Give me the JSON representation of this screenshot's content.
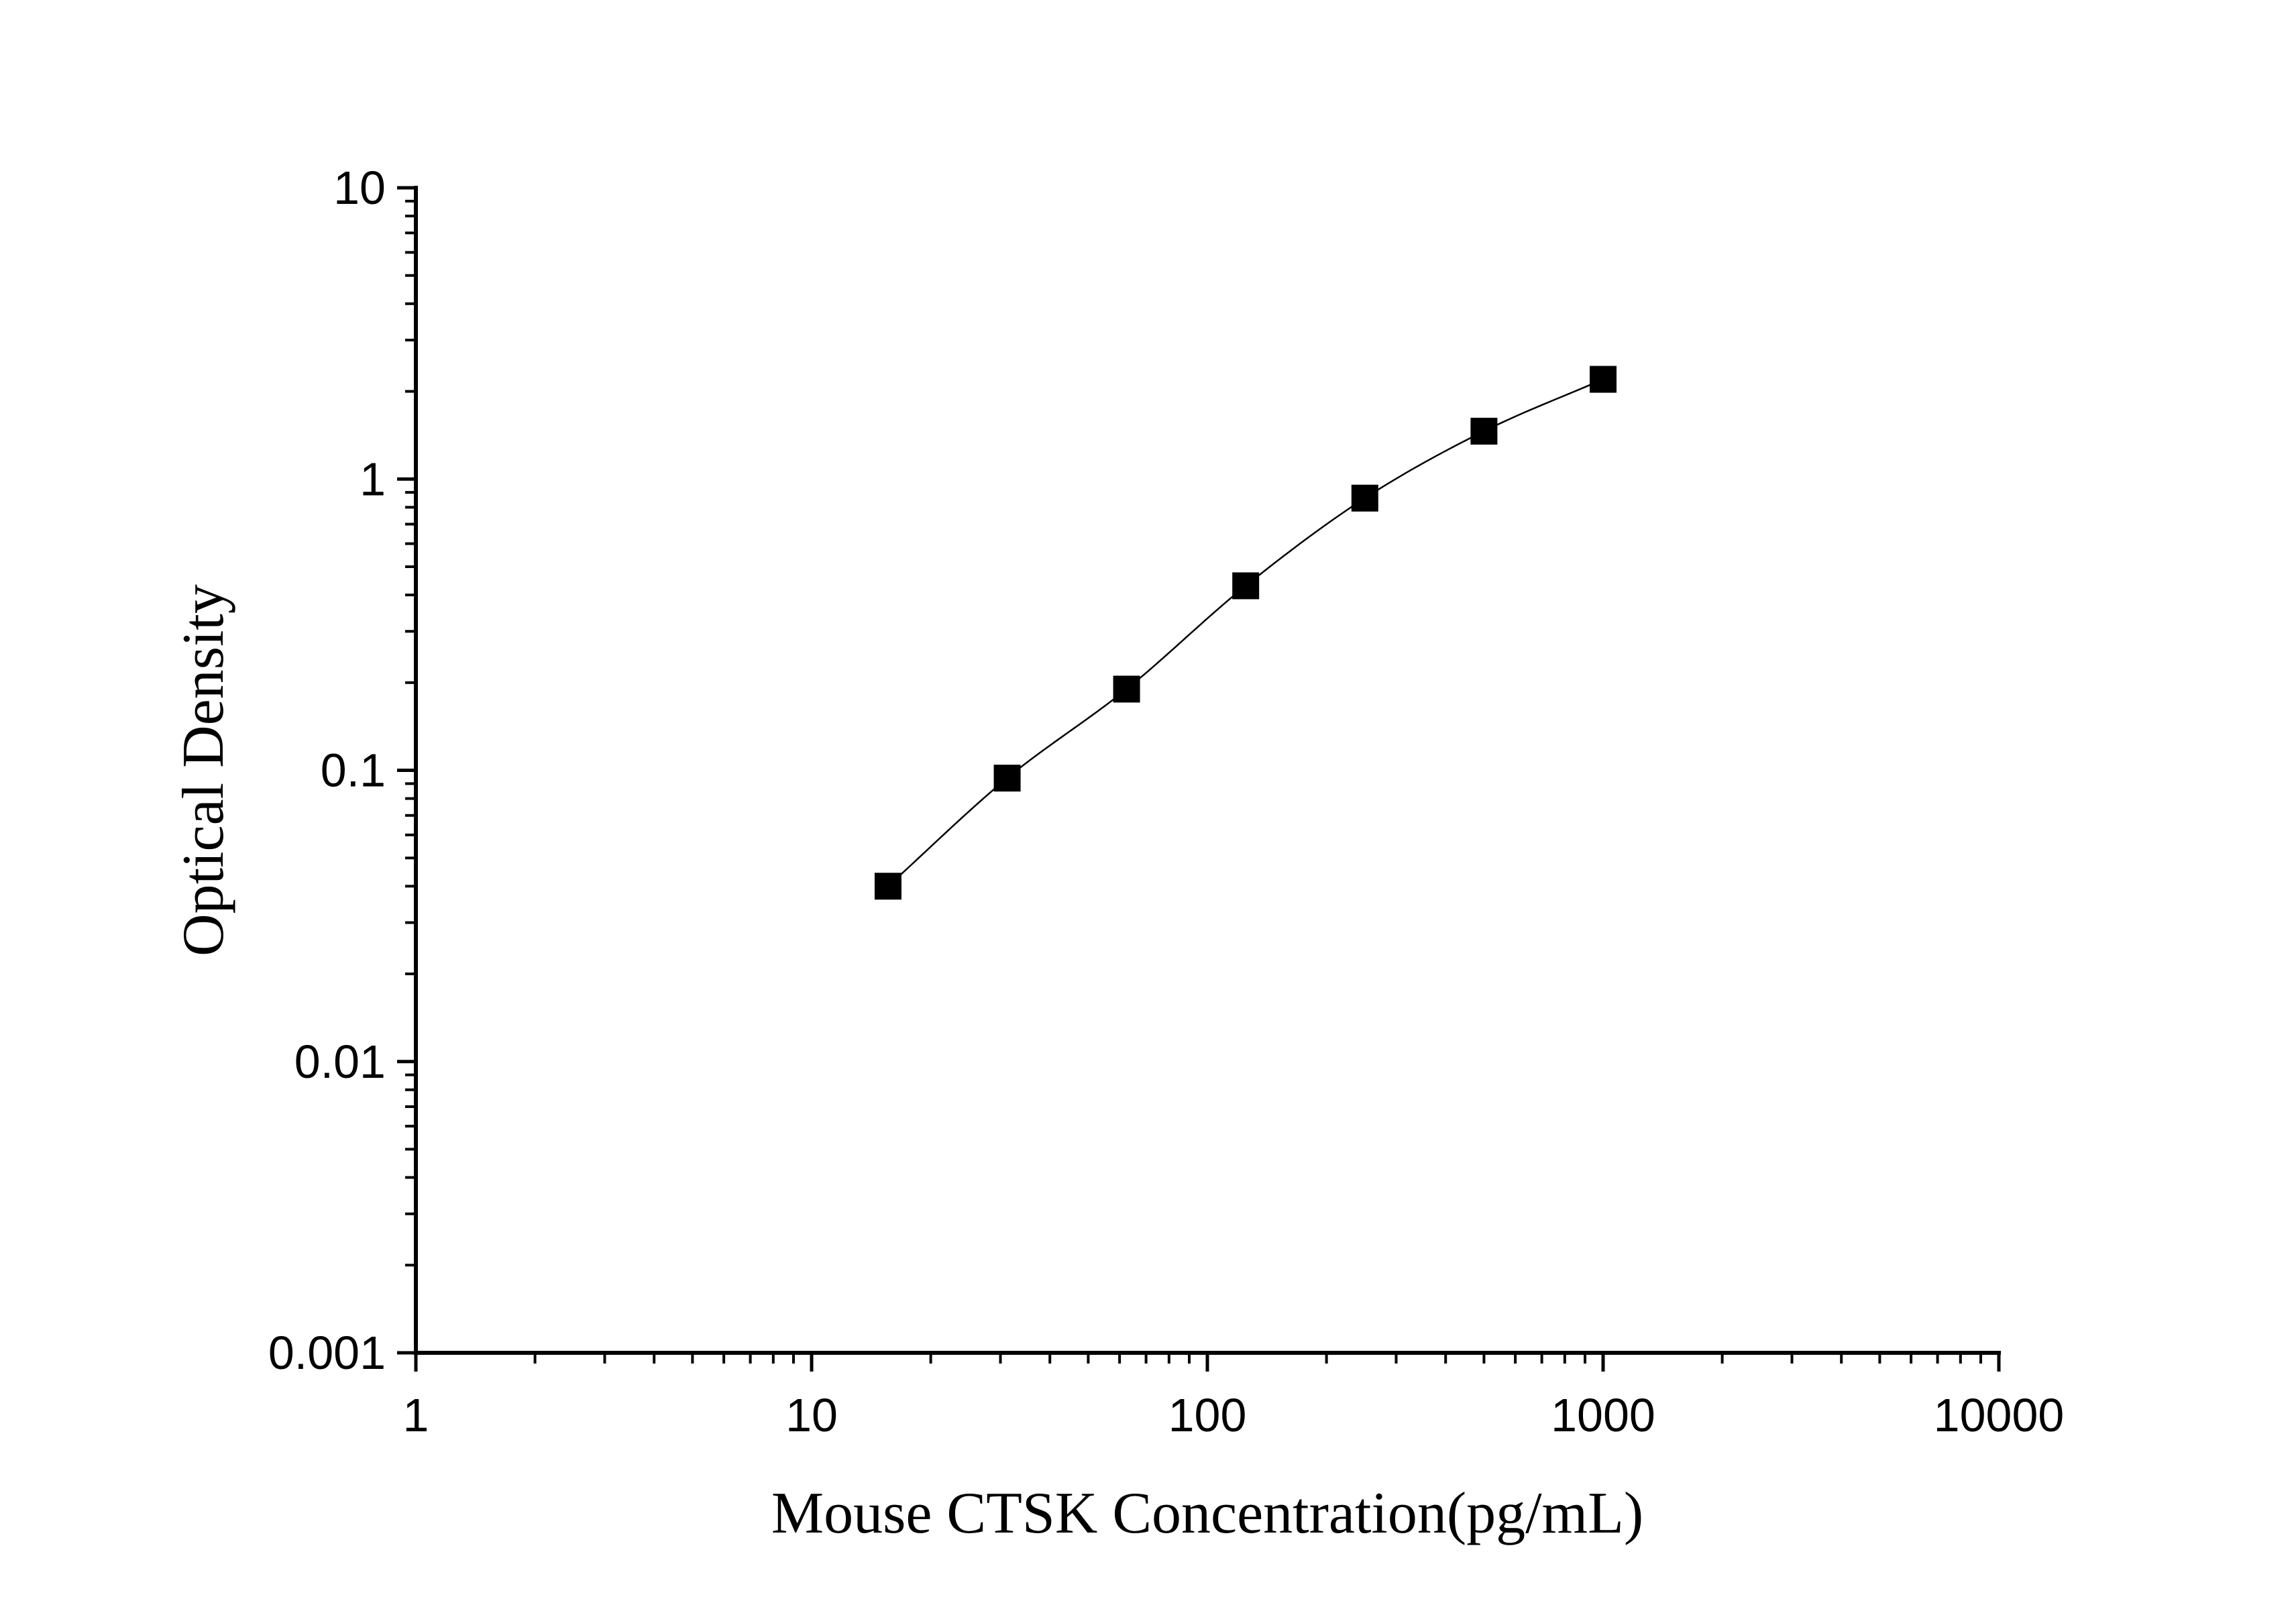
{
  "chart_data": {
    "type": "scatter",
    "xlabel": "Mouse CTSK Concentration(pg/mL)",
    "ylabel": "Optical Density",
    "x_scale": "log",
    "y_scale": "log",
    "xlim": [
      1,
      10000
    ],
    "ylim": [
      0.001,
      10
    ],
    "x_ticks": [
      "1",
      "10",
      "100",
      "1000",
      "10000"
    ],
    "y_ticks": [
      "0.001",
      "0.01",
      "0.1",
      "1",
      "10"
    ],
    "grid": false,
    "legend": "none",
    "series": [
      {
        "marker": "square",
        "fit_line": true,
        "color": "#000000",
        "x": [
          15.6,
          31.2,
          62.5,
          125,
          250,
          500,
          1000
        ],
        "y": [
          0.04,
          0.094,
          0.19,
          0.43,
          0.86,
          1.46,
          2.2
        ]
      }
    ]
  }
}
